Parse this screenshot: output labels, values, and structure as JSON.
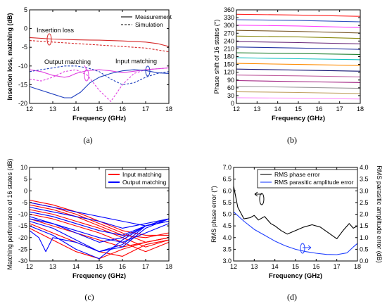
{
  "chart_data": [
    {
      "panel": "(a)",
      "type": "line",
      "xlabel": "Frequency (GHz)",
      "ylabel": "Insertion loss, matching (dB)",
      "xlim": [
        12,
        18
      ],
      "ylim": [
        -20,
        5
      ],
      "xticks": [
        12,
        13,
        14,
        15,
        16,
        17,
        18
      ],
      "yticks": [
        -20,
        -15,
        -10,
        -5,
        0,
        5
      ],
      "legend": {
        "placement": "top-right",
        "entries": [
          {
            "label": "Measurement",
            "style": "solid"
          },
          {
            "label": "Simulation",
            "style": "dashed"
          }
        ]
      },
      "annotations": [
        "Insertion loss",
        "Output matching",
        "Input matching"
      ],
      "series": [
        {
          "color": "#d62728",
          "style": "solid",
          "x": [
            12,
            13,
            14,
            15,
            16,
            17,
            17.5,
            18
          ],
          "y": [
            -2.4,
            -2.8,
            -3.0,
            -3.1,
            -3.3,
            -3.6,
            -4.0,
            -4.8
          ]
        },
        {
          "color": "#d62728",
          "style": "dashed",
          "x": [
            12,
            13,
            14,
            15,
            16,
            17,
            17.5,
            18
          ],
          "y": [
            -3.2,
            -3.6,
            -4.0,
            -4.4,
            -4.8,
            -5.2,
            -5.7,
            -6.2
          ]
        },
        {
          "color": "#e040e0",
          "style": "solid",
          "x": [
            12,
            12.5,
            13,
            13.5,
            13.7,
            14,
            14.5,
            15,
            15.5,
            16,
            17,
            18
          ],
          "y": [
            -11.0,
            -11.5,
            -12.5,
            -13.0,
            -12.8,
            -12.0,
            -11.2,
            -11.0,
            -11.3,
            -11.8,
            -11.0,
            -10.5
          ]
        },
        {
          "color": "#e040e0",
          "style": "dashed",
          "x": [
            12,
            12.5,
            13,
            13.5,
            14,
            14.5,
            15,
            15.5,
            16,
            16.5,
            17,
            18
          ],
          "y": [
            -13.5,
            -14.0,
            -13.0,
            -11.5,
            -11.0,
            -12.5,
            -16.5,
            -19.5,
            -15.0,
            -12.0,
            -11.0,
            -10.5
          ]
        },
        {
          "color": "#1f3fbf",
          "style": "solid",
          "x": [
            12,
            12.5,
            13,
            13.5,
            13.8,
            14.2,
            14.6,
            15,
            15.5,
            16,
            16.5,
            17,
            17.5,
            18
          ],
          "y": [
            -15.5,
            -16.5,
            -17.5,
            -18.5,
            -18.5,
            -17.0,
            -14.5,
            -13.0,
            -12.0,
            -11.3,
            -11.0,
            -11.2,
            -11.8,
            -12.0
          ]
        },
        {
          "color": "#1f3fbf",
          "style": "dashed",
          "x": [
            12,
            12.5,
            13,
            13.5,
            14,
            14.5,
            15,
            15.5,
            16,
            16.5,
            17,
            17.5,
            18
          ],
          "y": [
            -11.5,
            -11.0,
            -10.5,
            -10.0,
            -10.0,
            -10.5,
            -11.5,
            -13.5,
            -15.0,
            -14.5,
            -13.0,
            -12.0,
            -11.5
          ]
        }
      ]
    },
    {
      "panel": "(b)",
      "type": "line",
      "xlabel": "Frequency (GHz)",
      "ylabel": "Phase shift of 16 states (°)",
      "xlim": [
        12,
        18
      ],
      "ylim": [
        0,
        360
      ],
      "xticks": [
        12,
        13,
        14,
        15,
        16,
        17,
        18
      ],
      "yticks": [
        0,
        30,
        60,
        90,
        120,
        150,
        180,
        210,
        240,
        270,
        300,
        330,
        360
      ],
      "series": [
        {
          "color": "#ff2020",
          "x": [
            12,
            15,
            18
          ],
          "y": [
            343,
            340,
            335
          ]
        },
        {
          "color": "#3050c0",
          "x": [
            12,
            15,
            18
          ],
          "y": [
            322,
            319,
            314
          ]
        },
        {
          "color": "#ff40ff",
          "x": [
            12,
            15,
            18
          ],
          "y": [
            301,
            298,
            292
          ]
        },
        {
          "color": "#7b5a2a",
          "x": [
            12,
            15,
            18
          ],
          "y": [
            281,
            277,
            271
          ]
        },
        {
          "color": "#8a8a10",
          "x": [
            12,
            15,
            18
          ],
          "y": [
            259,
            256,
            250
          ]
        },
        {
          "color": "#6a2a7a",
          "x": [
            12,
            15,
            18
          ],
          "y": [
            238,
            234,
            229
          ]
        },
        {
          "color": "#2030a0",
          "x": [
            12,
            15,
            18
          ],
          "y": [
            217,
            213,
            208
          ]
        },
        {
          "color": "#208030",
          "x": [
            12,
            15,
            18
          ],
          "y": [
            195,
            192,
            188
          ]
        },
        {
          "color": "#10c0c0",
          "x": [
            12,
            15,
            18
          ],
          "y": [
            176,
            172,
            168
          ]
        },
        {
          "color": "#ff8c00",
          "x": [
            12,
            15,
            18
          ],
          "y": [
            154,
            150,
            146
          ]
        },
        {
          "color": "#101070",
          "x": [
            12,
            15,
            18
          ],
          "y": [
            132,
            128,
            124
          ]
        },
        {
          "color": "#c060a0",
          "x": [
            12,
            15,
            18
          ],
          "y": [
            109,
            106,
            102
          ]
        },
        {
          "color": "#a02080",
          "x": [
            12,
            15,
            18
          ],
          "y": [
            88,
            84,
            80
          ]
        },
        {
          "color": "#9a9a9a",
          "x": [
            12,
            15,
            18
          ],
          "y": [
            66,
            62,
            58
          ]
        },
        {
          "color": "#c0a060",
          "x": [
            12,
            15,
            18
          ],
          "y": [
            45,
            42,
            38
          ]
        },
        {
          "color": "#ff90ff",
          "x": [
            12,
            15,
            18
          ],
          "y": [
            22,
            20,
            17
          ]
        }
      ]
    },
    {
      "panel": "(c)",
      "type": "line",
      "xlabel": "Frequency (GHz)",
      "ylabel": "Matching performance of 16 states (dB)",
      "xlim": [
        12,
        18
      ],
      "ylim": [
        -30,
        10
      ],
      "xticks": [
        12,
        13,
        14,
        15,
        16,
        17,
        18
      ],
      "yticks": [
        -30,
        -25,
        -20,
        -15,
        -10,
        -5,
        0,
        5,
        10
      ],
      "legend": {
        "placement": "top-right",
        "entries": [
          {
            "label": "Input matching",
            "color": "#ff0000"
          },
          {
            "label": "Output matching",
            "color": "#0000ff"
          }
        ]
      },
      "series": [
        {
          "name": "Input matching",
          "color": "#ff0000",
          "x": [
            12,
            13,
            14,
            15,
            16,
            17,
            18
          ],
          "y": [
            -4,
            -6,
            -9,
            -13,
            -17,
            -19,
            -19
          ]
        },
        {
          "name": "Input matching",
          "color": "#ff0000",
          "x": [
            12,
            13,
            14,
            15,
            16,
            17,
            18
          ],
          "y": [
            -5,
            -7,
            -10,
            -14,
            -18,
            -22,
            -20
          ]
        },
        {
          "name": "Input matching",
          "color": "#ff0000",
          "x": [
            12,
            13,
            14,
            15,
            16,
            17,
            18
          ],
          "y": [
            -6,
            -8,
            -11,
            -15,
            -19,
            -20,
            -18
          ]
        },
        {
          "name": "Input matching",
          "color": "#ff0000",
          "x": [
            12,
            13,
            14,
            15,
            16,
            17,
            18
          ],
          "y": [
            -8,
            -10,
            -13,
            -16,
            -20,
            -24,
            -21
          ]
        },
        {
          "name": "Input matching",
          "color": "#ff0000",
          "x": [
            12,
            13,
            14,
            15,
            16,
            17,
            18
          ],
          "y": [
            -10,
            -12,
            -15,
            -18,
            -22,
            -26,
            -22
          ]
        },
        {
          "name": "Input matching",
          "color": "#ff0000",
          "x": [
            12,
            13,
            14,
            15,
            16,
            17,
            18
          ],
          "y": [
            -12,
            -15,
            -18,
            -21,
            -24,
            -22,
            -20
          ]
        },
        {
          "name": "Input matching",
          "color": "#ff0000",
          "x": [
            12,
            13,
            14,
            15,
            16,
            17,
            18
          ],
          "y": [
            -14,
            -18,
            -22,
            -26,
            -28,
            -23,
            -21
          ]
        },
        {
          "name": "Input matching",
          "color": "#ff0000",
          "x": [
            12,
            13,
            14,
            15,
            16,
            17,
            18
          ],
          "y": [
            -16,
            -21,
            -26,
            -29,
            -25,
            -22,
            -20
          ]
        },
        {
          "name": "Output matching",
          "color": "#0000ff",
          "x": [
            12,
            13,
            14,
            15,
            16,
            17,
            18
          ],
          "y": [
            -5,
            -7,
            -9,
            -11,
            -13,
            -15,
            -13
          ]
        },
        {
          "name": "Output matching",
          "color": "#0000ff",
          "x": [
            12,
            13,
            14,
            15,
            16,
            17,
            18
          ],
          "y": [
            -7,
            -9,
            -11,
            -13,
            -16,
            -14,
            -12
          ]
        },
        {
          "name": "Output matching",
          "color": "#0000ff",
          "x": [
            12,
            13,
            14,
            15,
            16,
            17,
            18
          ],
          "y": [
            -9,
            -11,
            -14,
            -17,
            -19,
            -15,
            -13
          ]
        },
        {
          "name": "Output matching",
          "color": "#0000ff",
          "x": [
            12,
            13,
            14,
            15,
            16,
            17,
            18
          ],
          "y": [
            -11,
            -14,
            -18,
            -22,
            -20,
            -15,
            -12
          ]
        },
        {
          "name": "Output matching",
          "color": "#0000ff",
          "x": [
            12,
            13,
            14,
            15,
            16,
            17,
            18
          ],
          "y": [
            -13,
            -16,
            -21,
            -26,
            -24,
            -16,
            -12
          ]
        },
        {
          "name": "Output matching",
          "color": "#0000ff",
          "x": [
            12,
            13,
            14,
            15,
            16,
            17,
            18
          ],
          "y": [
            -15,
            -19,
            -25,
            -29,
            -21,
            -15,
            -12
          ]
        },
        {
          "name": "Output matching",
          "color": "#0000ff",
          "x": [
            12,
            12.4,
            12.7,
            13,
            14,
            15,
            16,
            17,
            18
          ],
          "y": [
            -17,
            -20,
            -26,
            -20,
            -22,
            -26,
            -23,
            -15,
            -12
          ]
        },
        {
          "name": "Output matching",
          "color": "#0000ff",
          "x": [
            12,
            13,
            14,
            15,
            16,
            17,
            18
          ],
          "y": [
            -12,
            -14,
            -17,
            -20,
            -22,
            -18,
            -14
          ]
        }
      ]
    },
    {
      "panel": "(d)",
      "type": "line",
      "xlabel": "Frequency (GHz)",
      "ylabel": "RMS phase error (°)",
      "ylabel_right": "RMS parasitic amplitude error (dB)",
      "xlim": [
        12,
        18
      ],
      "ylim": [
        3.0,
        7.0
      ],
      "ylim_right": [
        0.0,
        4.0
      ],
      "xticks": [
        12,
        13,
        14,
        15,
        16,
        17,
        18
      ],
      "yticks": [
        3.0,
        3.5,
        4.0,
        4.5,
        5.0,
        5.5,
        6.0,
        6.5,
        7.0
      ],
      "yticks_right": [
        0.0,
        0.5,
        1.0,
        1.5,
        2.0,
        2.5,
        3.0,
        3.5,
        4.0
      ],
      "legend": {
        "placement": "top-right",
        "entries": [
          {
            "label": "RMS phase error",
            "color": "#000000"
          },
          {
            "label": "RMS parasitic amplitude error",
            "color": "#1f3fff"
          }
        ]
      },
      "series": [
        {
          "name": "RMS phase error",
          "color": "#000000",
          "axis": "left",
          "x": [
            12,
            12.2,
            12.5,
            12.8,
            13,
            13.2,
            13.5,
            13.8,
            14,
            14.3,
            14.6,
            15,
            15.4,
            15.8,
            16.2,
            16.6,
            17,
            17.3,
            17.6,
            17.8,
            18
          ],
          "y": [
            6.2,
            5.3,
            4.8,
            4.85,
            4.95,
            4.75,
            4.9,
            4.6,
            4.5,
            4.3,
            4.15,
            4.3,
            4.45,
            4.55,
            4.45,
            4.2,
            3.95,
            4.3,
            4.6,
            4.4,
            4.5
          ]
        },
        {
          "name": "RMS parasitic amplitude error",
          "color": "#1f3fff",
          "axis": "right",
          "x": [
            12,
            12.5,
            13,
            13.5,
            14,
            14.5,
            15,
            15.5,
            16,
            16.5,
            17,
            17.5,
            17.8,
            18
          ],
          "y": [
            2.1,
            1.7,
            1.35,
            1.1,
            0.85,
            0.65,
            0.5,
            0.4,
            0.33,
            0.28,
            0.27,
            0.35,
            0.6,
            0.75
          ]
        }
      ]
    }
  ],
  "captions": [
    "(a)",
    "(b)",
    "(c)",
    "(d)"
  ]
}
